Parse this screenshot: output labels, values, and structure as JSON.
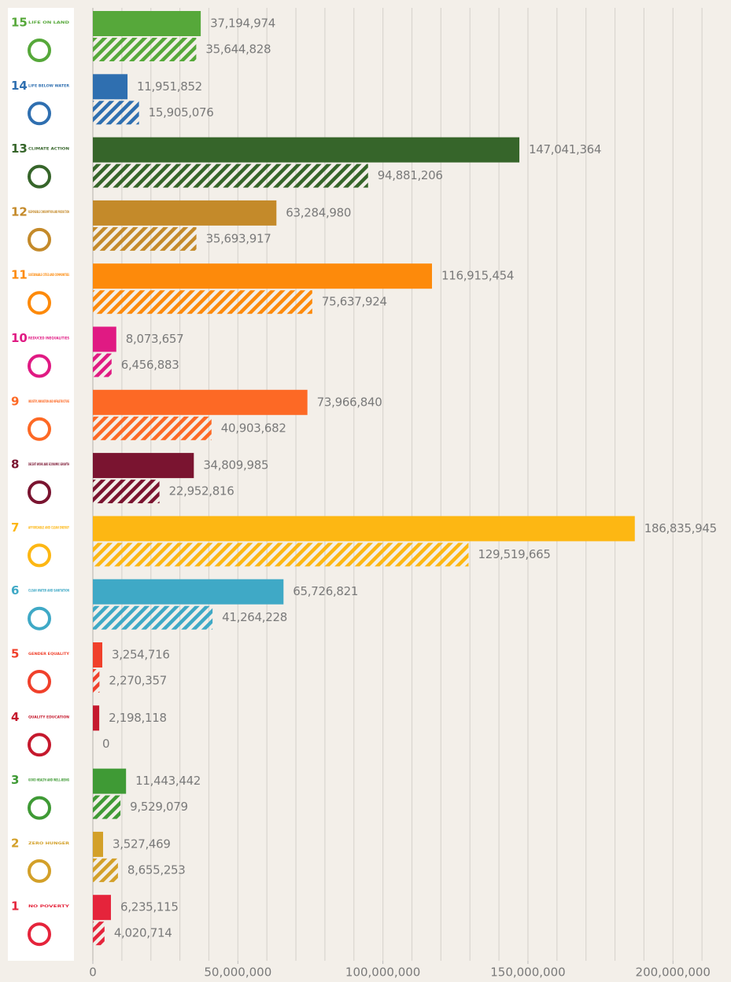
{
  "chart_data": {
    "type": "bar",
    "orientation": "horizontal",
    "categories": [
      "15",
      "14",
      "13",
      "12",
      "11",
      "10",
      "9",
      "8",
      "7",
      "6",
      "5",
      "4",
      "3",
      "2",
      "1"
    ],
    "category_titles": [
      "LIFE ON LAND",
      "LIFE BELOW WATER",
      "CLIMATE ACTION",
      "RESPONSIBLE CONSUMPTION AND PRODUCTION",
      "SUSTAINABLE CITIES AND COMMUNITIES",
      "REDUCED INEQUALITIES",
      "INDUSTRY, INNOVATION AND INFRASTRUCTURE",
      "DECENT WORK AND ECONOMIC GROWTH",
      "AFFORDABLE AND CLEAN ENERGY",
      "CLEAN WATER AND SANITATION",
      "GENDER EQUALITY",
      "QUALITY EDUCATION",
      "GOOD HEALTH AND WELL-BEING",
      "ZERO HUNGER",
      "NO POVERTY"
    ],
    "colors": [
      "#56a83a",
      "#2f6fb0",
      "#36652a",
      "#c48a2a",
      "#fd8a0b",
      "#e01a83",
      "#fd6925",
      "#7a1430",
      "#fdb713",
      "#3fa9c6",
      "#f0402b",
      "#c5192d",
      "#3f9a35",
      "#d3a029",
      "#e5243b"
    ],
    "series": [
      {
        "pattern": "solid",
        "values": [
          37194974,
          11951852,
          147041364,
          63284980,
          116915454,
          8073657,
          73966840,
          34809985,
          186835945,
          65726821,
          3254716,
          2198118,
          11443442,
          3527469,
          6235115
        ],
        "value_labels": [
          "37,194,974",
          "11,951,852",
          "147,041,364",
          "63,284,980",
          "116,915,454",
          "8,073,657",
          "73,966,840",
          "34,809,985",
          "186,835,945",
          "65,726,821",
          "3,254,716",
          "2,198,118",
          "11,443,442",
          "3,527,469",
          "6,235,115"
        ]
      },
      {
        "pattern": "hatched",
        "values": [
          35644828,
          15905076,
          94881206,
          35693917,
          75637924,
          6456883,
          40903682,
          22952816,
          129519665,
          41264228,
          2270357,
          0,
          9529079,
          8655253,
          4020714
        ],
        "value_labels": [
          "35,644,828",
          "15,905,076",
          "94,881,206",
          "35,693,917",
          "75,637,924",
          "6,456,883",
          "40,903,682",
          "22,952,816",
          "129,519,665",
          "41,264,228",
          "2,270,357",
          "0",
          "9,529,079",
          "8,655,253",
          "4,020,714"
        ]
      }
    ],
    "xlim": [
      0,
      220000000
    ],
    "xticks": [
      0,
      {
        "value": 50000000,
        "label": "50,000,000"
      },
      {
        "value": 100000000,
        "label": "100,000,000"
      },
      {
        "value": 150000000,
        "label": "150,000,000"
      },
      {
        "value": 200000000,
        "label": "200,000,000"
      }
    ],
    "xgrid": [
      10000000,
      20000000,
      30000000,
      40000000,
      50000000,
      60000000,
      70000000,
      80000000,
      90000000,
      100000000,
      110000000,
      120000000,
      130000000,
      140000000,
      150000000,
      160000000,
      170000000,
      180000000,
      190000000,
      200000000,
      210000000
    ]
  }
}
